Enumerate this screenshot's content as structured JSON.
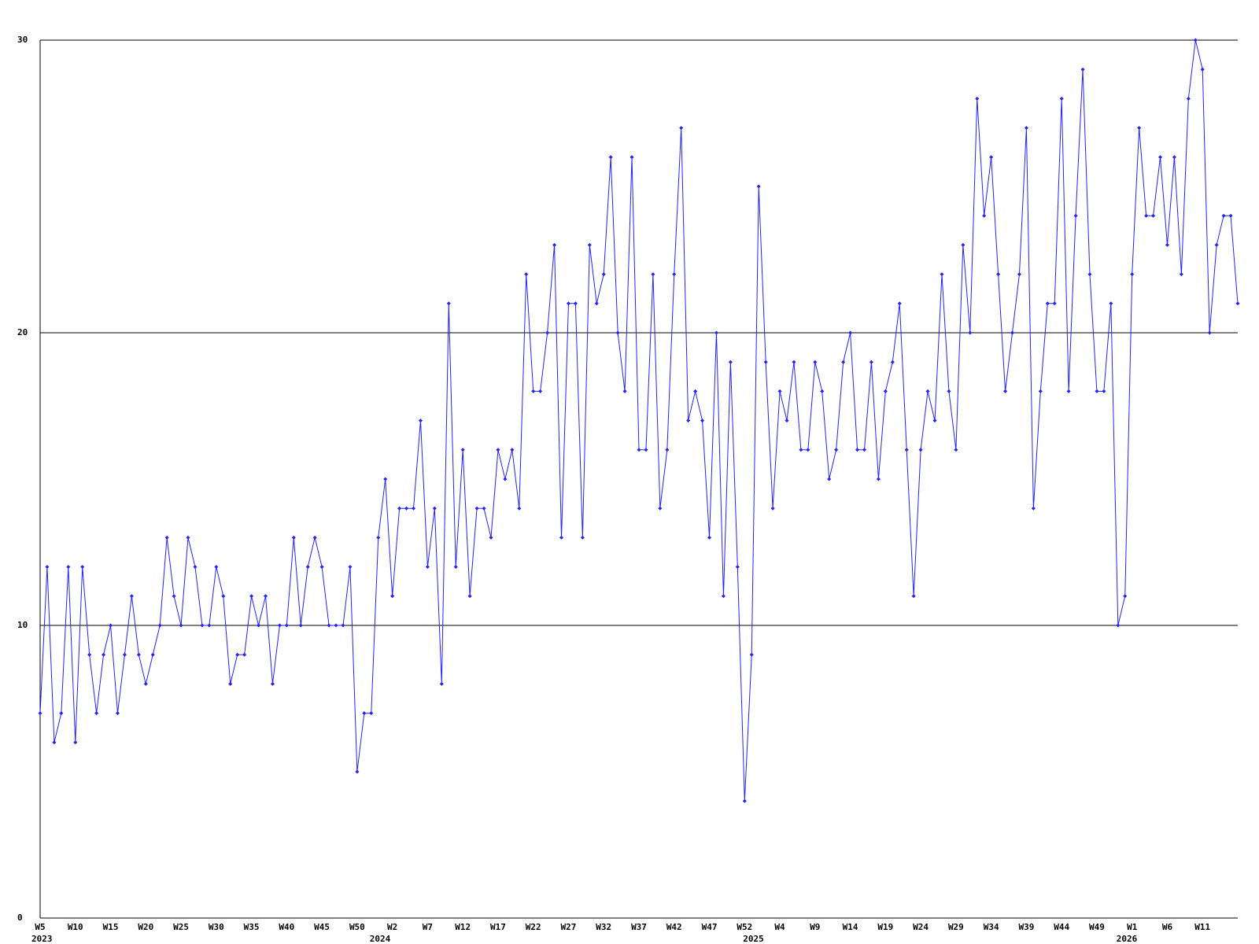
{
  "chart_data": {
    "type": "line",
    "categories": [
      "W5",
      null,
      null,
      null,
      null,
      "W10",
      null,
      null,
      null,
      null,
      "W15",
      null,
      null,
      null,
      null,
      "W20",
      null,
      null,
      null,
      null,
      "W25",
      null,
      null,
      null,
      null,
      "W30",
      null,
      null,
      null,
      null,
      "W35",
      null,
      null,
      null,
      null,
      "W40",
      null,
      null,
      null,
      null,
      "W45",
      null,
      null,
      null,
      null,
      "W50",
      null,
      null,
      null,
      null,
      "W2",
      null,
      null,
      null,
      null,
      "W7",
      null,
      null,
      null,
      null,
      "W12",
      null,
      null,
      null,
      null,
      "W17",
      null,
      null,
      null,
      null,
      "W22",
      null,
      null,
      null,
      null,
      "W27",
      null,
      null,
      null,
      null,
      "W32",
      null,
      null,
      null,
      null,
      "W37",
      null,
      null,
      null,
      null,
      "W42",
      null,
      null,
      null,
      null,
      "W47",
      null,
      null,
      null,
      null,
      "W52",
      null,
      null,
      null,
      null,
      "W4",
      null,
      null,
      null,
      null,
      "W9",
      null,
      null,
      null,
      null,
      "W14",
      null,
      null,
      null,
      null,
      "W19",
      null,
      null,
      null,
      null,
      "W24",
      null,
      null,
      null,
      null,
      "W29",
      null,
      null,
      null,
      null,
      "W34",
      null,
      null,
      null,
      null,
      "W39",
      null,
      null,
      null,
      null,
      "W44",
      null,
      null,
      null,
      null,
      "W49",
      null,
      null,
      null,
      null,
      "W1",
      null,
      null,
      null,
      null,
      "W6",
      null,
      null,
      null,
      null,
      "W11",
      null,
      null,
      null,
      null,
      null
    ],
    "year_labels": [
      {
        "index": 0,
        "label": "2023"
      },
      {
        "index": 48,
        "label": "2024"
      },
      {
        "index": 101,
        "label": "2025"
      },
      {
        "index": 154,
        "label": "2026"
      }
    ],
    "values": [
      7,
      12,
      6,
      7,
      12,
      6,
      12,
      9,
      7,
      9,
      10,
      7,
      9,
      11,
      9,
      8,
      9,
      10,
      13,
      11,
      10,
      13,
      12,
      10,
      10,
      12,
      11,
      8,
      9,
      9,
      11,
      10,
      11,
      8,
      10,
      10,
      13,
      10,
      12,
      13,
      12,
      10,
      10,
      10,
      12,
      5,
      7,
      7,
      13,
      15,
      11,
      14,
      14,
      14,
      17,
      12,
      14,
      8,
      21,
      12,
      16,
      11,
      14,
      14,
      13,
      16,
      15,
      16,
      14,
      22,
      18,
      18,
      20,
      23,
      13,
      21,
      21,
      13,
      23,
      21,
      22,
      26,
      20,
      18,
      26,
      16,
      16,
      22,
      14,
      16,
      22,
      27,
      17,
      18,
      17,
      13,
      20,
      11,
      19,
      12,
      4,
      9,
      25,
      19,
      14,
      18,
      17,
      19,
      16,
      16,
      19,
      18,
      15,
      16,
      19,
      20,
      16,
      16,
      19,
      15,
      18,
      19,
      21,
      16,
      11,
      16,
      18,
      17,
      22,
      18,
      16,
      23,
      20,
      28,
      24,
      26,
      22,
      18,
      20,
      22,
      27,
      14,
      18,
      21,
      21,
      28,
      18,
      24,
      29,
      22,
      18,
      18,
      21,
      10,
      11,
      22,
      27,
      24,
      24,
      26,
      23,
      26,
      22,
      28,
      30,
      29,
      20,
      23,
      24,
      24,
      21
    ],
    "color": "#2222ff",
    "ylim": [
      0,
      30
    ],
    "yticks": [
      0,
      10,
      20,
      30
    ],
    "grid": true
  }
}
